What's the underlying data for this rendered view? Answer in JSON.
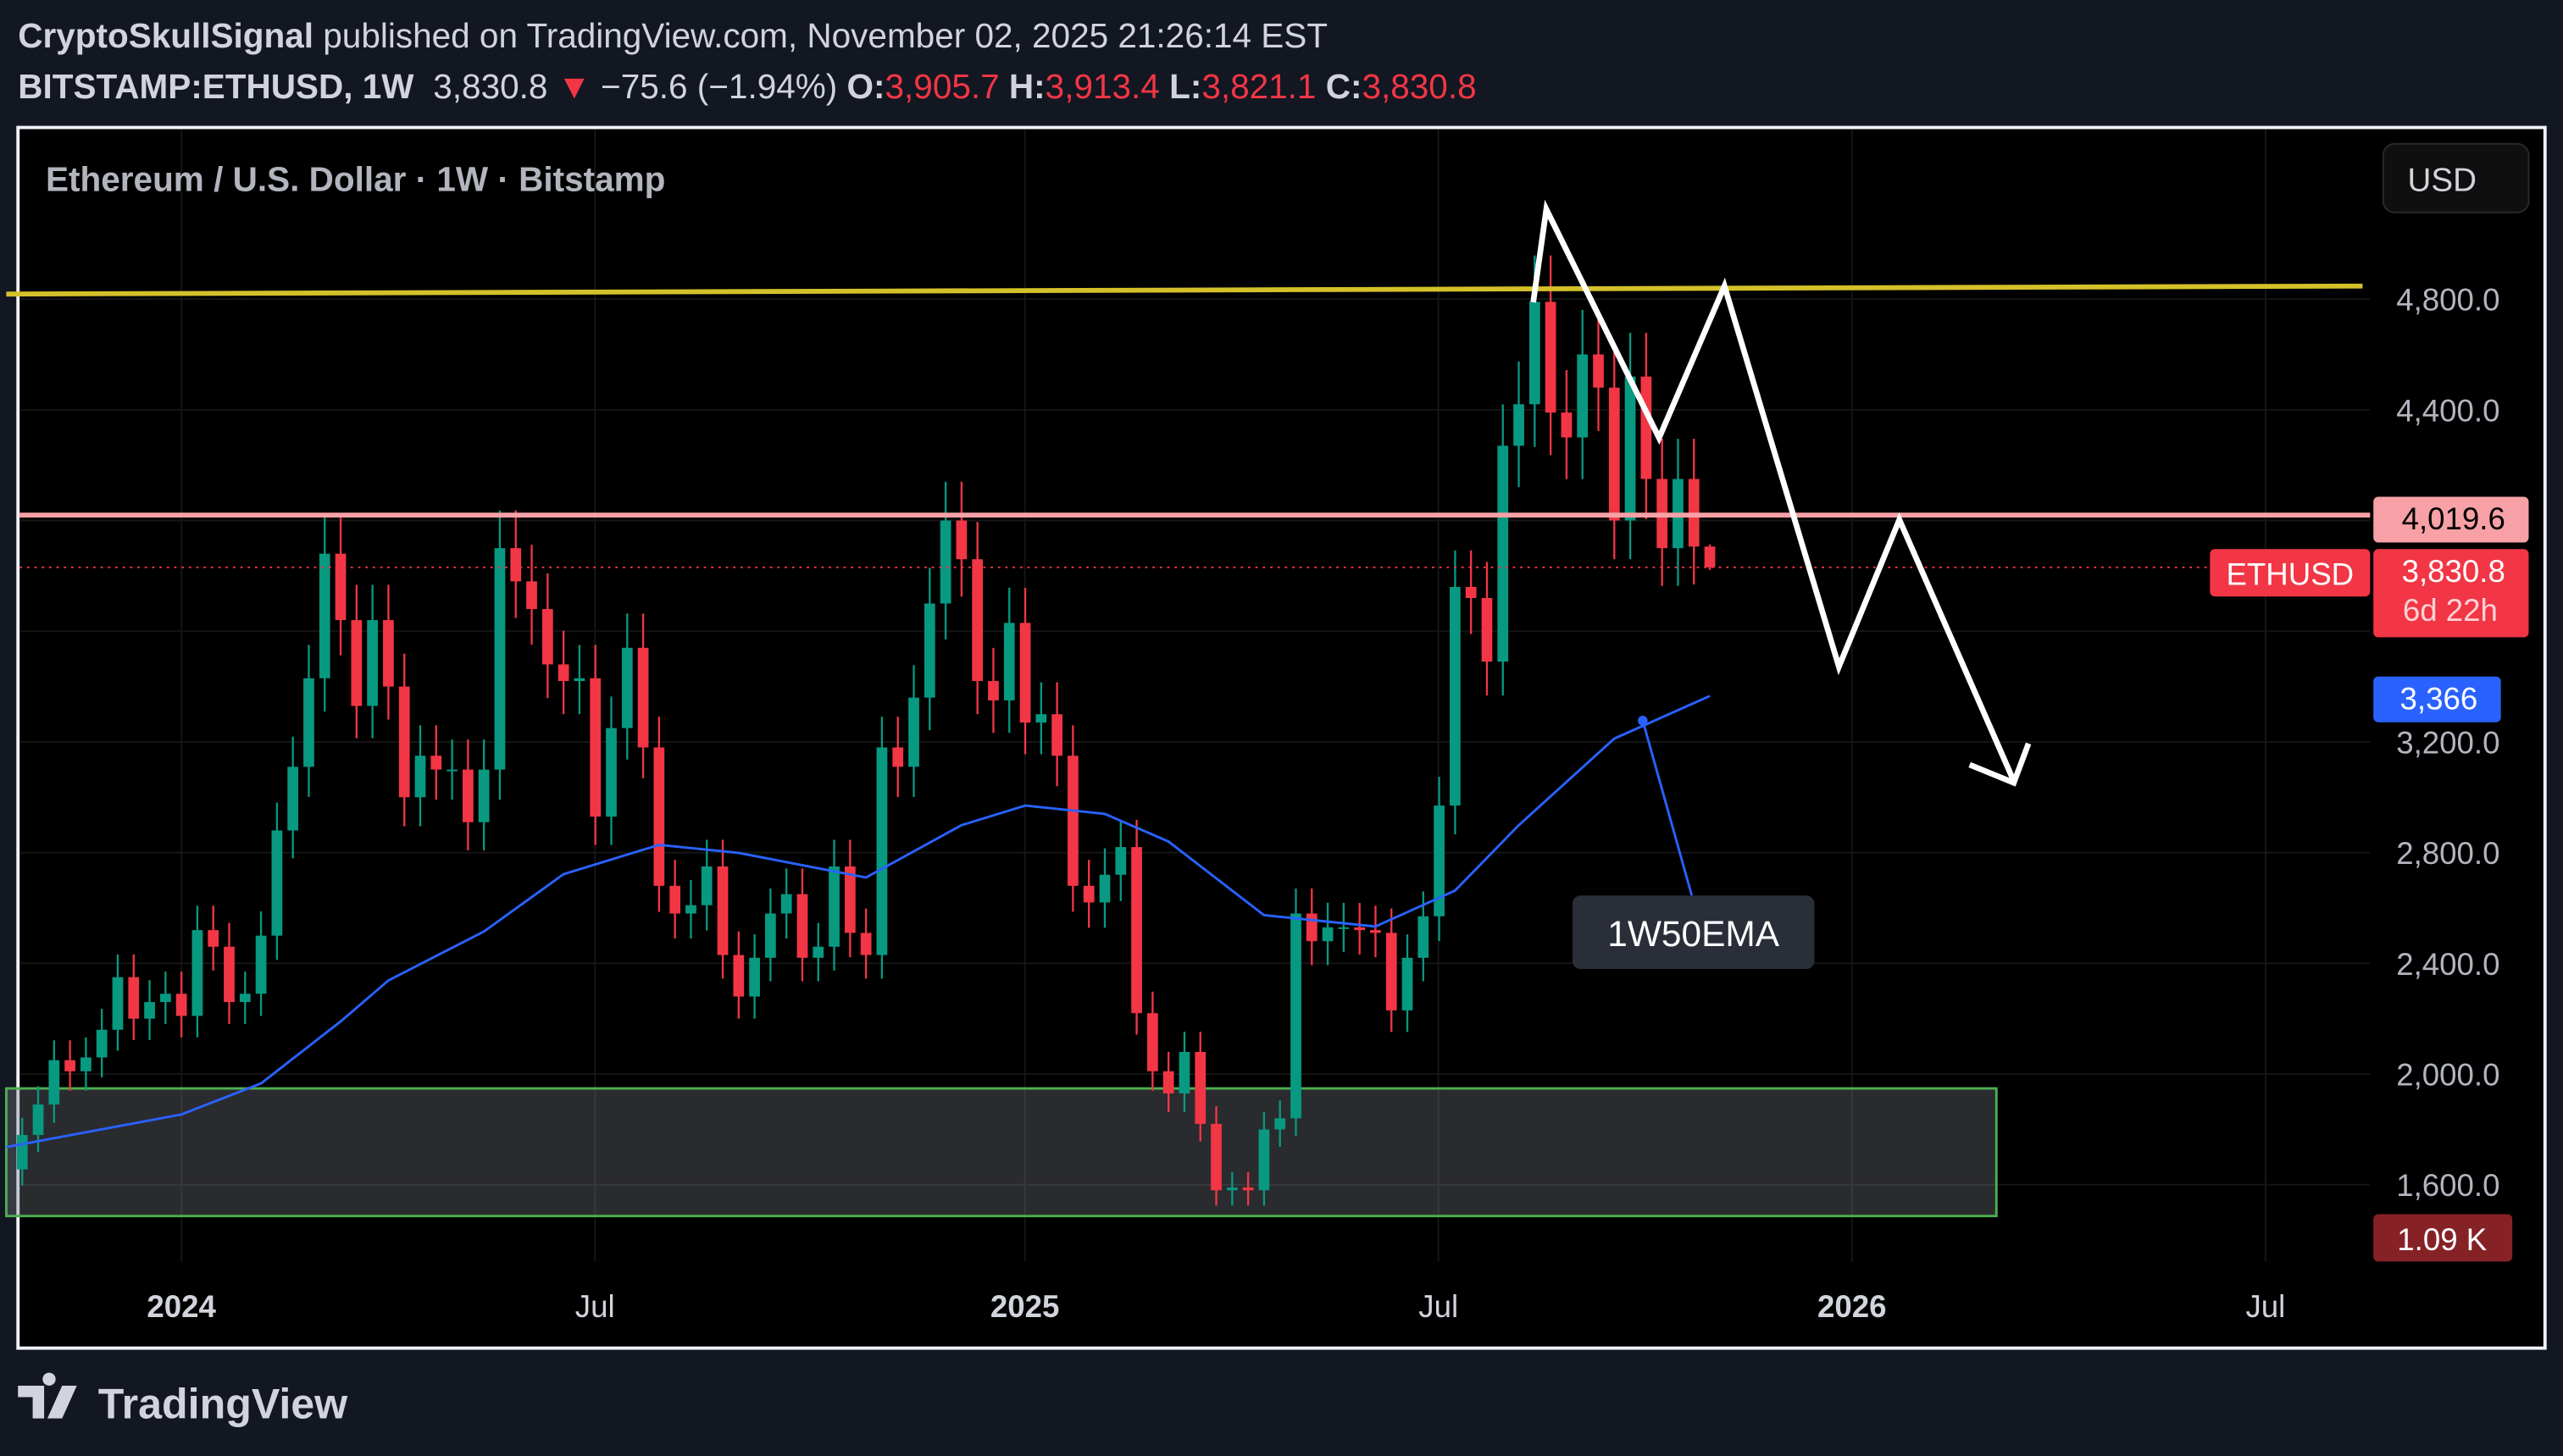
{
  "header": {
    "author": "CryptoSkullSignal",
    "published": " published on TradingView.com, November 02, 2025 21:26:14 EST",
    "symbol": "BITSTAMP:ETHUSD, 1W",
    "last": "3,830.8",
    "change": "−75.6 (−1.94%)",
    "o_label": "O:",
    "o": "3,905.7",
    "h_label": "H:",
    "h": "3,913.4",
    "l_label": "L:",
    "l": "3,821.1",
    "c_label": "C:",
    "c": "3,830.8"
  },
  "chart": {
    "title": "Ethereum / U.S. Dollar · 1W · Bitstamp",
    "currency_button": "USD",
    "price_ticks": [
      "4,800.0",
      "4,400.0",
      "3,200.0",
      "2,800.0",
      "2,400.0",
      "2,000.0",
      "1,600.0"
    ],
    "time_ticks": [
      {
        "label": "2024",
        "bold": true
      },
      {
        "label": "Jul",
        "bold": false
      },
      {
        "label": "2025",
        "bold": true
      },
      {
        "label": "Jul",
        "bold": false
      },
      {
        "label": "2026",
        "bold": true
      },
      {
        "label": "Jul",
        "bold": false
      }
    ],
    "labels": {
      "resistance": "4,019.6",
      "symbol_tag": "ETHUSD",
      "last_price": "3,830.8",
      "countdown": "6d 22h",
      "ema_value": "3,366",
      "volume": "1.09 K",
      "ema_annotation": "1W50EMA"
    },
    "colors": {
      "up": "#089981",
      "down": "#f23645",
      "ema": "#2962ff",
      "yellow_line": "#d4c12a",
      "resistance": "#f7a1a7",
      "zone_border": "#4caf50"
    }
  },
  "chart_data": {
    "type": "candlestick",
    "interval": "1W",
    "ylim": [
      1350,
      5150
    ],
    "closes": [
      [
        "2023-10-23",
        1780
      ],
      [
        "2023-10-30",
        1890
      ],
      [
        "2023-11-06",
        2050
      ],
      [
        "2023-11-13",
        2010
      ],
      [
        "2023-11-20",
        2060
      ],
      [
        "2023-11-27",
        2160
      ],
      [
        "2023-12-04",
        2350
      ],
      [
        "2023-12-11",
        2200
      ],
      [
        "2023-12-18",
        2260
      ],
      [
        "2023-12-25",
        2290
      ],
      [
        "2024-01-01",
        2210
      ],
      [
        "2024-01-08",
        2520
      ],
      [
        "2024-01-15",
        2460
      ],
      [
        "2024-01-22",
        2260
      ],
      [
        "2024-01-29",
        2290
      ],
      [
        "2024-02-05",
        2500
      ],
      [
        "2024-02-12",
        2880
      ],
      [
        "2024-02-19",
        3110
      ],
      [
        "2024-02-26",
        3430
      ],
      [
        "2024-03-04",
        3880
      ],
      [
        "2024-03-11",
        3640
      ],
      [
        "2024-03-18",
        3330
      ],
      [
        "2024-03-25",
        3640
      ],
      [
        "2024-04-01",
        3400
      ],
      [
        "2024-04-08",
        3000
      ],
      [
        "2024-04-15",
        3150
      ],
      [
        "2024-04-22",
        3100
      ],
      [
        "2024-04-29",
        3100
      ],
      [
        "2024-05-06",
        2910
      ],
      [
        "2024-05-13",
        3100
      ],
      [
        "2024-05-20",
        3900
      ],
      [
        "2024-05-27",
        3780
      ],
      [
        "2024-06-03",
        3680
      ],
      [
        "2024-06-10",
        3480
      ],
      [
        "2024-06-17",
        3420
      ],
      [
        "2024-06-24",
        3430
      ],
      [
        "2024-07-01",
        2930
      ],
      [
        "2024-07-08",
        3250
      ],
      [
        "2024-07-15",
        3540
      ],
      [
        "2024-07-22",
        3180
      ],
      [
        "2024-07-29",
        2680
      ],
      [
        "2024-08-05",
        2580
      ],
      [
        "2024-08-12",
        2610
      ],
      [
        "2024-08-19",
        2750
      ],
      [
        "2024-08-26",
        2430
      ],
      [
        "2024-09-02",
        2280
      ],
      [
        "2024-09-09",
        2420
      ],
      [
        "2024-09-16",
        2580
      ],
      [
        "2024-09-23",
        2650
      ],
      [
        "2024-09-30",
        2420
      ],
      [
        "2024-10-07",
        2460
      ],
      [
        "2024-10-14",
        2750
      ],
      [
        "2024-10-21",
        2510
      ],
      [
        "2024-10-28",
        2430
      ],
      [
        "2024-11-04",
        3180
      ],
      [
        "2024-11-11",
        3110
      ],
      [
        "2024-11-18",
        3360
      ],
      [
        "2024-11-25",
        3700
      ],
      [
        "2024-12-02",
        4000
      ],
      [
        "2024-12-09",
        3860
      ],
      [
        "2024-12-16",
        3420
      ],
      [
        "2024-12-23",
        3350
      ],
      [
        "2024-12-30",
        3630
      ],
      [
        "2025-01-06",
        3270
      ],
      [
        "2025-01-13",
        3300
      ],
      [
        "2025-01-20",
        3150
      ],
      [
        "2025-01-27",
        2680
      ],
      [
        "2025-02-03",
        2620
      ],
      [
        "2025-02-10",
        2720
      ],
      [
        "2025-02-17",
        2820
      ],
      [
        "2025-02-24",
        2220
      ],
      [
        "2025-03-03",
        2010
      ],
      [
        "2025-03-10",
        1930
      ],
      [
        "2025-03-17",
        2080
      ],
      [
        "2025-03-24",
        1820
      ],
      [
        "2025-03-31",
        1580
      ],
      [
        "2025-04-07",
        1590
      ],
      [
        "2025-04-14",
        1580
      ],
      [
        "2025-04-21",
        1800
      ],
      [
        "2025-04-28",
        1840
      ],
      [
        "2025-05-05",
        2580
      ],
      [
        "2025-05-12",
        2480
      ],
      [
        "2025-05-19",
        2530
      ],
      [
        "2025-05-26",
        2530
      ],
      [
        "2025-06-02",
        2520
      ],
      [
        "2025-06-09",
        2510
      ],
      [
        "2025-06-16",
        2230
      ],
      [
        "2025-06-23",
        2420
      ],
      [
        "2025-06-30",
        2570
      ],
      [
        "2025-07-07",
        2970
      ],
      [
        "2025-07-14",
        3760
      ],
      [
        "2025-07-21",
        3720
      ],
      [
        "2025-07-28",
        3490
      ],
      [
        "2025-08-04",
        4270
      ],
      [
        "2025-08-11",
        4420
      ],
      [
        "2025-08-18",
        4790
      ],
      [
        "2025-08-25",
        4390
      ],
      [
        "2025-09-01",
        4300
      ],
      [
        "2025-09-08",
        4600
      ],
      [
        "2025-09-15",
        4480
      ],
      [
        "2025-09-22",
        4000
      ],
      [
        "2025-09-29",
        4520
      ],
      [
        "2025-10-06",
        4150
      ],
      [
        "2025-10-13",
        3900
      ],
      [
        "2025-10-20",
        4150
      ],
      [
        "2025-10-27",
        3905.7
      ],
      [
        "2025-11-03",
        3830.8
      ]
    ],
    "ema50": [
      [
        "2023-10-16",
        1736
      ],
      [
        "2024-01-01",
        1854
      ],
      [
        "2024-02-05",
        1966
      ],
      [
        "2024-03-11",
        2190
      ],
      [
        "2024-04-01",
        2338
      ],
      [
        "2024-05-13",
        2515
      ],
      [
        "2024-06-17",
        2722
      ],
      [
        "2024-07-29",
        2828
      ],
      [
        "2024-09-02",
        2799
      ],
      [
        "2024-10-28",
        2710
      ],
      [
        "2024-12-09",
        2899
      ],
      [
        "2025-01-06",
        2970
      ],
      [
        "2025-02-10",
        2940
      ],
      [
        "2025-03-10",
        2840
      ],
      [
        "2025-04-21",
        2574
      ],
      [
        "2025-06-09",
        2533
      ],
      [
        "2025-07-14",
        2663
      ],
      [
        "2025-08-11",
        2899
      ],
      [
        "2025-09-22",
        3212
      ],
      [
        "2025-11-03",
        3366
      ]
    ],
    "horizontal_lines": [
      {
        "price": 4019.6
      },
      {
        "price": 3830.8,
        "style": "dotted"
      }
    ],
    "trendline": [
      [
        "2023-10-16",
        4818
      ],
      [
        "2026-08-17",
        4847
      ]
    ],
    "demand_zone": {
      "from": "2023-10-16",
      "to": "2026-03-09",
      "top": 1948,
      "bottom": 1487
    }
  },
  "footer": {
    "brand": "TradingView"
  }
}
